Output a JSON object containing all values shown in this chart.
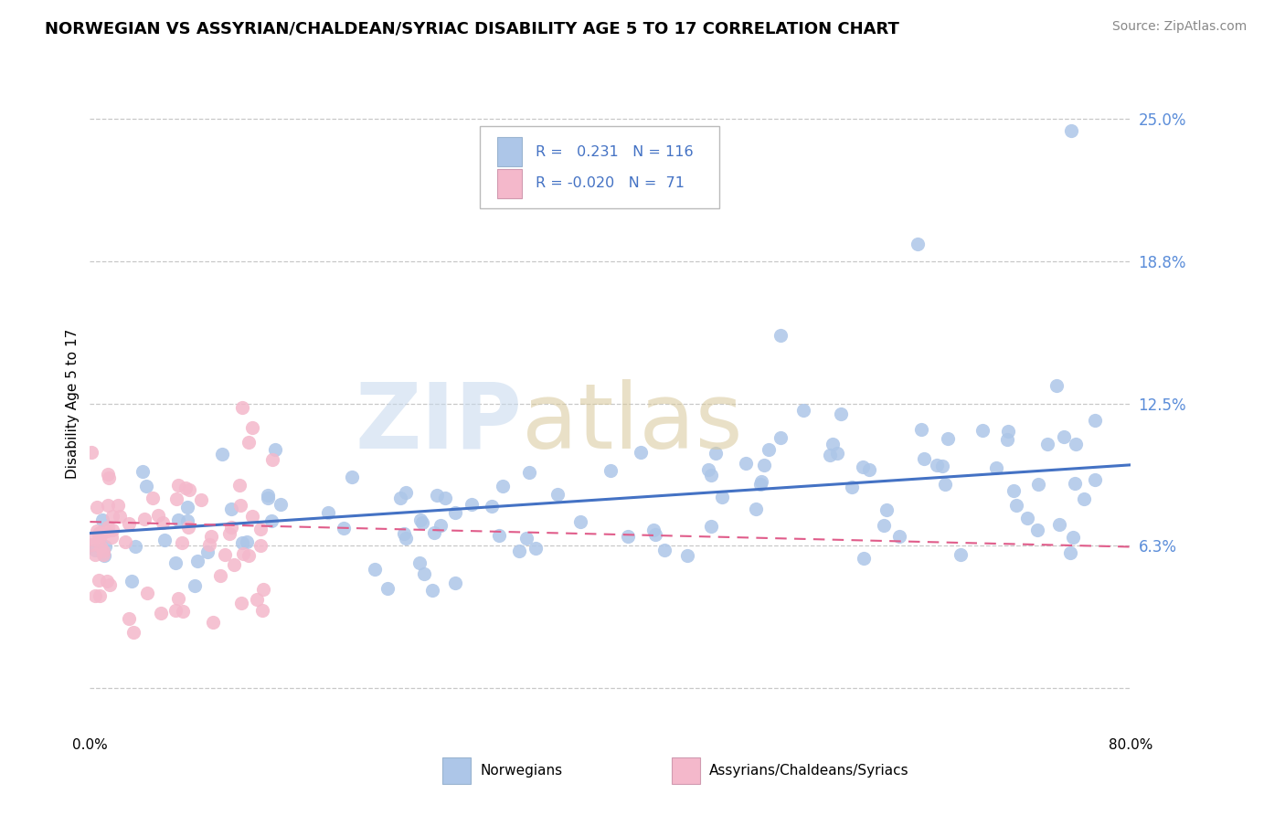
{
  "title": "NORWEGIAN VS ASSYRIAN/CHALDEAN/SYRIAC DISABILITY AGE 5 TO 17 CORRELATION CHART",
  "source": "Source: ZipAtlas.com",
  "ylabel": "Disability Age 5 to 17",
  "xlim": [
    0.0,
    0.8
  ],
  "ylim": [
    -0.02,
    0.27
  ],
  "yticks": [
    0.0,
    0.0625,
    0.125,
    0.1875,
    0.25
  ],
  "ytick_labels": [
    "",
    "6.3%",
    "12.5%",
    "18.8%",
    "25.0%"
  ],
  "xticks": [
    0.0,
    0.8
  ],
  "xtick_labels": [
    "0.0%",
    "80.0%"
  ],
  "norwegian_R": 0.231,
  "norwegian_N": 116,
  "assyrian_R": -0.02,
  "assyrian_N": 71,
  "norwegian_color": "#adc6e8",
  "norwegian_edge_color": "#adc6e8",
  "norwegian_line_color": "#4472c4",
  "assyrian_color": "#f4b8cb",
  "assyrian_edge_color": "#f4b8cb",
  "assyrian_line_color": "#e05c8a",
  "background_color": "#ffffff",
  "grid_color": "#c8c8c8",
  "nor_line_start_y": 0.068,
  "nor_line_end_y": 0.098,
  "asy_line_start_y": 0.073,
  "asy_line_end_y": 0.062
}
